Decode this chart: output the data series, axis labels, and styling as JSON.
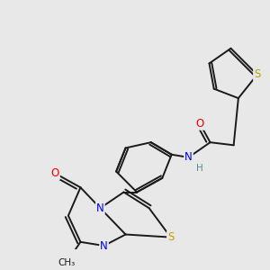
{
  "bg_color": "#e8e8e8",
  "bond_color": "#1a1a1a",
  "bond_width": 1.4,
  "dbo": 0.055,
  "atom_colors": {
    "S": "#b8a000",
    "N": "#0000ee",
    "O": "#ee0000",
    "C": "#1a1a1a",
    "H": "#4a9090"
  },
  "fs": 8.5,
  "fs_small": 7.5
}
